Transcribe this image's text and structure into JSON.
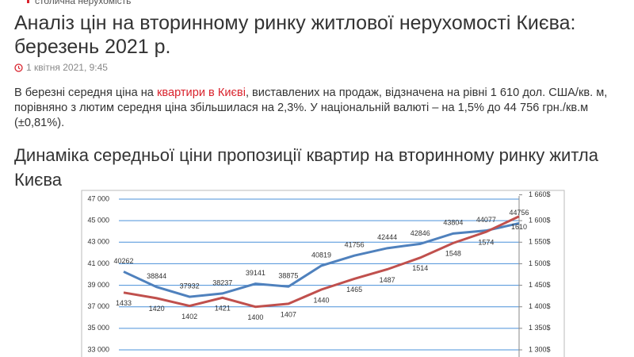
{
  "breadcrumb": "столична нерухомість",
  "article": {
    "title": "Аналіз цін на вторинному ринку житлової нерухомості Києва: березень 2021 р.",
    "date": "1 квітня 2021, 9:45",
    "paragraph": [
      "В березні середня ціна на ",
      "квартири в Києві",
      ", виставлених на продаж, відзначена на рівні 1 610 дол. США/кв. м, порівняно з лютим середня ціна збільшилася на 2,3%. У національній валюті – на 1,5% до 44 756 грн./кв.м (±0,81%)."
    ],
    "chart_heading": "Динаміка середньої ціни пропозиції квартир на вторинному ринку житла Києва"
  },
  "chart_data": {
    "type": "line",
    "categories": [
      null,
      null,
      null,
      null,
      null,
      null,
      null,
      null,
      null,
      null,
      null,
      null,
      null
    ],
    "series": [
      {
        "color": "#4f81bd",
        "values": [
          40262,
          38844,
          37932,
          38237,
          39141,
          38875,
          40819,
          41756,
          42444,
          42846,
          43804,
          44077,
          44756
        ]
      },
      {
        "color": "#c0504d",
        "axis": "y2",
        "values": [
          1433,
          1420,
          1402,
          1421,
          1400,
          1407,
          1440,
          1465,
          1487,
          1514,
          1548,
          1574,
          1610
        ]
      }
    ],
    "ylim": [
      33000,
      47000
    ],
    "yticks": [
      {
        "value": 47000,
        "label": "47 000"
      },
      {
        "value": 45000,
        "label": "45 000"
      },
      {
        "value": 43000,
        "label": "43 000"
      },
      {
        "value": 41000,
        "label": "41 000"
      },
      {
        "value": 39000,
        "label": "39 000"
      },
      {
        "value": 37000,
        "label": "37 000"
      },
      {
        "value": 35000,
        "label": "35 000"
      },
      {
        "value": 33000,
        "label": "33 000"
      }
    ],
    "y2lim": [
      1300,
      1650
    ],
    "y2ticks": [
      {
        "value": 1660,
        "label": "1 660$"
      },
      {
        "value": 1600,
        "label": "1 600$"
      },
      {
        "value": 1550,
        "label": "1 550$"
      },
      {
        "value": 1500,
        "label": "1 500$"
      },
      {
        "value": 1450,
        "label": "1 450$"
      },
      {
        "value": 1400,
        "label": "1 400$"
      },
      {
        "value": 1350,
        "label": "1 350$"
      },
      {
        "value": 1300,
        "label": "1 300$"
      }
    ],
    "grid": true
  }
}
